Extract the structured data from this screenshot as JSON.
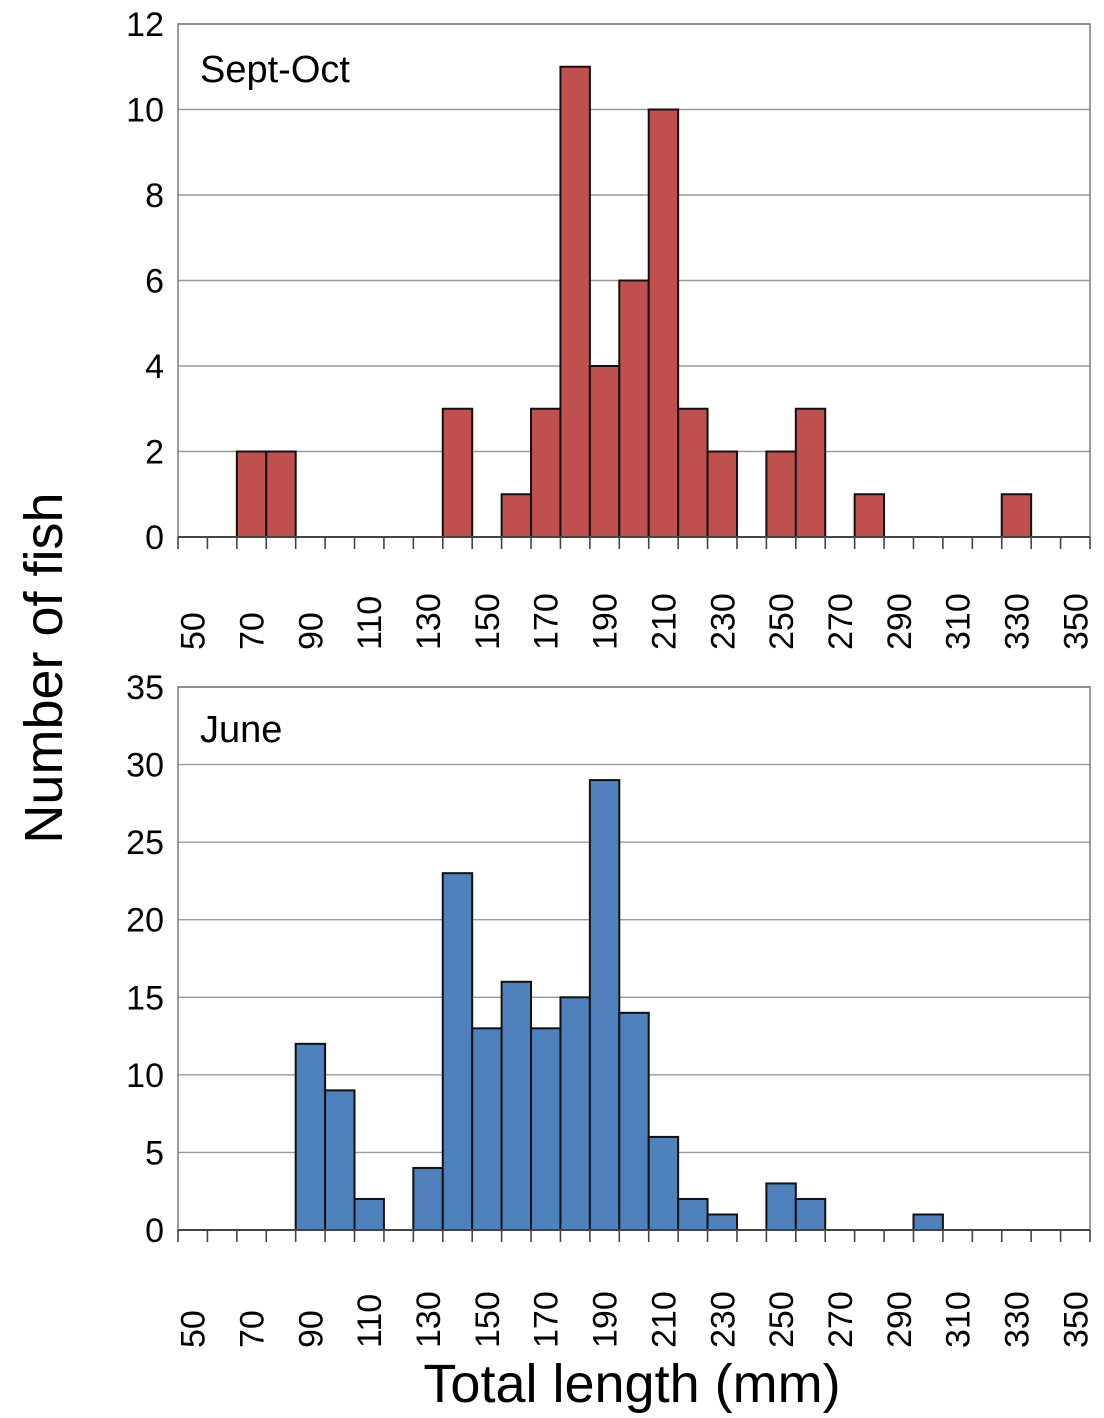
{
  "figure": {
    "ylabel": "Number of fish",
    "xlabel": "Total length (mm)"
  },
  "chart_data": [
    {
      "type": "bar",
      "panel_label": "Sept-Oct",
      "color": "#C0504D",
      "bin_width": 10,
      "xlim": [
        45,
        355
      ],
      "xticks": [
        50,
        70,
        90,
        110,
        130,
        150,
        170,
        190,
        210,
        230,
        250,
        270,
        290,
        310,
        330,
        350
      ],
      "ylim": [
        0,
        12
      ],
      "yticks": [
        0,
        2,
        4,
        6,
        8,
        10,
        12
      ],
      "grid": true,
      "bins": [
        {
          "x": 70,
          "count": 2
        },
        {
          "x": 80,
          "count": 2
        },
        {
          "x": 140,
          "count": 3
        },
        {
          "x": 160,
          "count": 1
        },
        {
          "x": 170,
          "count": 3
        },
        {
          "x": 180,
          "count": 11
        },
        {
          "x": 190,
          "count": 4
        },
        {
          "x": 200,
          "count": 6
        },
        {
          "x": 210,
          "count": 10
        },
        {
          "x": 220,
          "count": 3
        },
        {
          "x": 230,
          "count": 2
        },
        {
          "x": 250,
          "count": 2
        },
        {
          "x": 260,
          "count": 3
        },
        {
          "x": 280,
          "count": 1
        },
        {
          "x": 330,
          "count": 1
        }
      ]
    },
    {
      "type": "bar",
      "panel_label": "June",
      "color": "#4F81BD",
      "bin_width": 10,
      "xlim": [
        45,
        355
      ],
      "xticks": [
        50,
        70,
        90,
        110,
        130,
        150,
        170,
        190,
        210,
        230,
        250,
        270,
        290,
        310,
        330,
        350
      ],
      "ylim": [
        0,
        35
      ],
      "yticks": [
        0,
        5,
        10,
        15,
        20,
        25,
        30,
        35
      ],
      "grid": true,
      "bins": [
        {
          "x": 90,
          "count": 12
        },
        {
          "x": 100,
          "count": 9
        },
        {
          "x": 110,
          "count": 2
        },
        {
          "x": 130,
          "count": 4
        },
        {
          "x": 140,
          "count": 23
        },
        {
          "x": 150,
          "count": 13
        },
        {
          "x": 160,
          "count": 16
        },
        {
          "x": 170,
          "count": 13
        },
        {
          "x": 180,
          "count": 15
        },
        {
          "x": 190,
          "count": 29
        },
        {
          "x": 200,
          "count": 14
        },
        {
          "x": 210,
          "count": 6
        },
        {
          "x": 220,
          "count": 2
        },
        {
          "x": 230,
          "count": 1
        },
        {
          "x": 250,
          "count": 3
        },
        {
          "x": 260,
          "count": 2
        },
        {
          "x": 300,
          "count": 1
        }
      ]
    }
  ]
}
